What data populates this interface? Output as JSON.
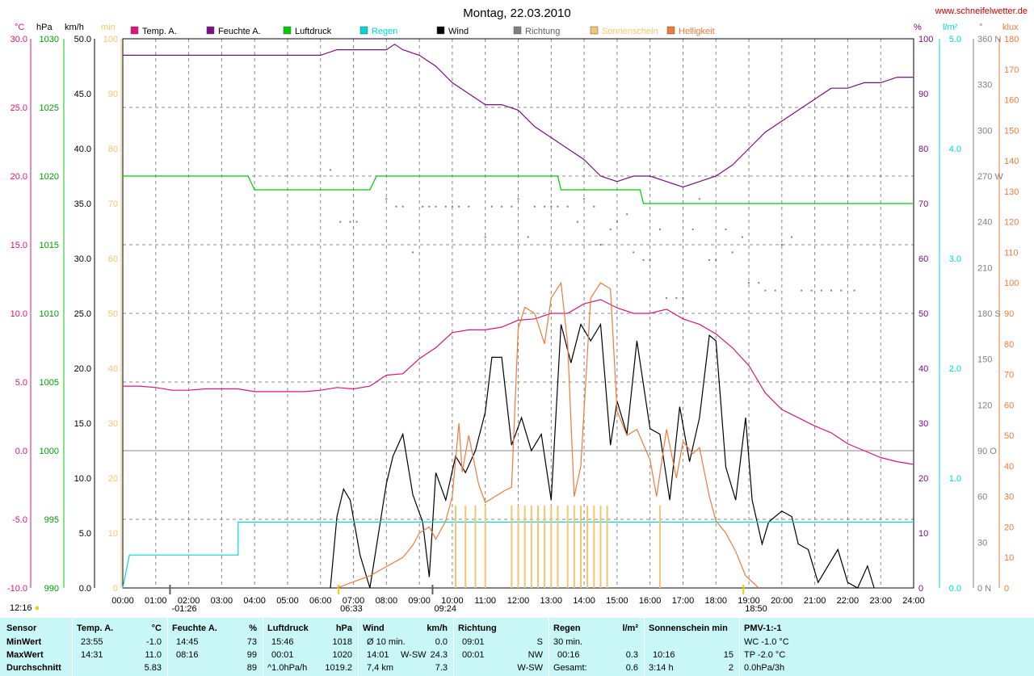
{
  "title": "Montag, 22.03.2010",
  "site": "www.schneifelwetter.de",
  "legend": [
    {
      "label": "Temp. A.",
      "color": "#e0137c"
    },
    {
      "label": "Feuchte A.",
      "color": "#7b0f82"
    },
    {
      "label": "Luftdruck",
      "color": "#00cc00"
    },
    {
      "label": "Regen",
      "color": "#00d8d8"
    },
    {
      "label": "Wind",
      "color": "#000000"
    },
    {
      "label": "Richtung",
      "color": "#808080"
    },
    {
      "label": "Sonnenschein",
      "color": "#f5c56e"
    },
    {
      "label": "Helligkeit",
      "color": "#f07a3c"
    }
  ],
  "axes": {
    "temp": {
      "unit": "°C",
      "ticks": [
        "30.0",
        "25.0",
        "20.0",
        "15.0",
        "10.0",
        "5.0",
        "0.0",
        "-5.0",
        "-10.0"
      ],
      "color": "#e0137c"
    },
    "pressure": {
      "unit": "hPa",
      "ticks": [
        "1030",
        "1025",
        "1020",
        "1015",
        "1010",
        "1005",
        "1000",
        "995",
        "990"
      ],
      "color": "#00a000"
    },
    "wind": {
      "unit": "km/h",
      "ticks": [
        "50.0",
        "45.0",
        "40.0",
        "35.0",
        "30.0",
        "25.0",
        "20.0",
        "15.0",
        "10.0",
        "5.0",
        "0.0"
      ],
      "color": "#000000"
    },
    "sun": {
      "unit": "min",
      "ticks": [
        "100",
        "90",
        "80",
        "70",
        "60",
        "50",
        "40",
        "30",
        "20",
        "10",
        "0"
      ],
      "color": "#f5c56e"
    },
    "humidity": {
      "unit": "%",
      "ticks": [
        "100",
        "90",
        "80",
        "70",
        "60",
        "50",
        "40",
        "30",
        "20",
        "10",
        "0"
      ],
      "color": "#7b0f82"
    },
    "rain": {
      "unit": "l/m²",
      "ticks": [
        "5.0",
        "4.0",
        "3.0",
        "2.0",
        "1.0",
        "0.0"
      ],
      "color": "#00d8d8"
    },
    "direction": {
      "unit": "°",
      "ticks": [
        "360 N",
        "330",
        "300",
        "270 W",
        "240",
        "210",
        "180 S",
        "150",
        "120",
        "90 O",
        "60",
        "30",
        "0 N"
      ],
      "color": "#808080"
    },
    "lux": {
      "unit": "klux",
      "ticks": [
        "180",
        "170",
        "160",
        "150",
        "140",
        "130",
        "120",
        "110",
        "100",
        "90",
        "80",
        "70",
        "60",
        "50",
        "40",
        "30",
        "20",
        "10",
        "0"
      ],
      "color": "#f07a3c"
    },
    "time": [
      "00:00",
      "01:00",
      "02:00",
      "03:00",
      "04:00",
      "05:00",
      "06:00",
      "07:00",
      "08:00",
      "09:00",
      "10:00",
      "11:00",
      "12:00",
      "13:00",
      "14:00",
      "15:00",
      "16:00",
      "17:00",
      "18:00",
      "19:00",
      "20:00",
      "21:00",
      "22:00",
      "23:00",
      "24:00"
    ]
  },
  "events": {
    "moonset": "12:16",
    "moon1": "01:26",
    "sunrise": "06:33",
    "moon2": "09:24",
    "sunset": "18:50"
  },
  "chart_data": {
    "type": "line",
    "title": "Montag, 22.03.2010",
    "x_unit": "hours",
    "xlim": [
      0,
      24
    ],
    "series": [
      {
        "name": "Temp. A.",
        "unit": "°C",
        "ylim": [
          -10,
          30
        ],
        "x": [
          0,
          0.5,
          1,
          1.5,
          2,
          2.5,
          3,
          3.5,
          4,
          4.5,
          5,
          5.5,
          6,
          6.5,
          7,
          7.5,
          8,
          8.5,
          9,
          9.5,
          10,
          10.5,
          11,
          11.5,
          12,
          12.5,
          13,
          13.5,
          14,
          14.5,
          15,
          15.5,
          16,
          16.5,
          17,
          17.5,
          18,
          18.5,
          19,
          19.5,
          20,
          20.5,
          21,
          21.5,
          22,
          22.5,
          23,
          23.5,
          24
        ],
        "y": [
          4.7,
          4.7,
          4.6,
          4.4,
          4.4,
          4.5,
          4.5,
          4.5,
          4.3,
          4.3,
          4.3,
          4.3,
          4.4,
          4.6,
          4.5,
          4.7,
          5.5,
          5.6,
          6.7,
          7.5,
          8.6,
          8.8,
          8.8,
          9.0,
          9.5,
          9.6,
          10.0,
          10.0,
          10.7,
          11.0,
          10.4,
          10.0,
          10.0,
          10.3,
          9.6,
          9.2,
          8.5,
          7.5,
          6.2,
          4.2,
          3.0,
          2.4,
          1.8,
          1.3,
          0.5,
          0.0,
          -0.5,
          -0.8,
          -1.0
        ]
      },
      {
        "name": "Feuchte A.",
        "unit": "%",
        "ylim": [
          0,
          100
        ],
        "x": [
          0,
          1,
          2,
          3,
          4,
          5,
          6,
          6.5,
          7,
          8,
          8.25,
          8.5,
          9,
          9.5,
          10,
          10.5,
          11,
          11.5,
          12,
          12.5,
          13,
          13.5,
          14,
          14.5,
          15,
          15.5,
          16,
          16.5,
          17,
          17.5,
          18,
          18.5,
          19,
          19.5,
          20,
          20.5,
          21,
          21.5,
          22,
          22.5,
          23,
          23.5,
          24
        ],
        "y": [
          97,
          97,
          97,
          97,
          97,
          97,
          97,
          98,
          98,
          98,
          99,
          98,
          97,
          95,
          92,
          90,
          88,
          88,
          87,
          84,
          82,
          80,
          78,
          75,
          74,
          75,
          75,
          74,
          73,
          74,
          75,
          77,
          80,
          83,
          85,
          87,
          89,
          91,
          91,
          92,
          92,
          93,
          93
        ]
      },
      {
        "name": "Luftdruck",
        "unit": "hPa",
        "ylim": [
          990,
          1030
        ],
        "x": [
          0,
          1,
          2,
          3,
          3.8,
          4,
          5,
          6,
          7,
          7.5,
          7.7,
          8,
          9,
          10,
          11,
          12,
          13,
          13.2,
          13.3,
          14,
          15,
          15.7,
          15.8,
          16,
          17,
          18,
          19,
          20,
          21,
          22,
          23,
          24
        ],
        "y": [
          1020,
          1020,
          1020,
          1020,
          1020,
          1019,
          1019,
          1019,
          1019,
          1019,
          1020,
          1020,
          1020,
          1020,
          1020,
          1020,
          1020,
          1020,
          1019,
          1019,
          1019,
          1019,
          1018,
          1018,
          1018,
          1018,
          1018,
          1018,
          1018,
          1018,
          1018,
          1018
        ]
      },
      {
        "name": "Wind",
        "unit": "km/h",
        "ylim": [
          0,
          50
        ],
        "x": [
          6.3,
          6.5,
          6.7,
          6.9,
          7.2,
          7.5,
          8.0,
          8.2,
          8.5,
          8.8,
          9.1,
          9.3,
          9.5,
          9.8,
          10.1,
          10.4,
          10.7,
          11.0,
          11.2,
          11.5,
          11.8,
          12.1,
          12.4,
          12.7,
          13.0,
          13.3,
          13.6,
          13.9,
          14.2,
          14.5,
          14.8,
          15.0,
          15.3,
          15.6,
          16.0,
          16.3,
          16.6,
          16.9,
          17.2,
          17.5,
          17.8,
          18.0,
          18.3,
          18.6,
          18.9,
          19.1,
          19.4,
          19.6,
          20.0,
          20.3,
          20.5,
          20.8,
          21.1,
          21.4,
          21.7,
          22.0,
          22.3,
          22.6,
          22.8
        ],
        "y": [
          0,
          6.5,
          9.0,
          8.0,
          3.0,
          0,
          9.5,
          12.0,
          14.0,
          8.5,
          6.0,
          1.0,
          10.5,
          8.0,
          12.0,
          10.5,
          12.5,
          16.0,
          21.0,
          21.0,
          13.0,
          15.5,
          12.5,
          14.0,
          8.0,
          24.0,
          20.5,
          24.0,
          22.5,
          24.0,
          13.0,
          17.0,
          14.0,
          22.5,
          14.5,
          14.0,
          8.0,
          16.5,
          11.5,
          15.5,
          23.0,
          22.5,
          11.0,
          8.0,
          15.5,
          8.0,
          4.0,
          6.0,
          7.0,
          6.5,
          4.0,
          3.5,
          0.5,
          2.0,
          3.5,
          0.5,
          0,
          2.0,
          0
        ]
      },
      {
        "name": "Regen",
        "unit": "l/m²",
        "ylim": [
          0,
          5
        ],
        "x": [
          0,
          0.2,
          0.25,
          3.3,
          3.5,
          3.5,
          24
        ],
        "y": [
          0,
          0.3,
          0.3,
          0.3,
          0.3,
          0.6,
          0.6
        ]
      },
      {
        "name": "Richtung",
        "unit": "°",
        "ylim": [
          0,
          360
        ],
        "points": "scatter",
        "x": [
          6.3,
          6.6,
          6.9,
          7.1,
          8.0,
          8.3,
          8.5,
          8.8,
          9.1,
          9.3,
          9.5,
          9.8,
          10.0,
          10.2,
          10.5,
          11.0,
          11.2,
          11.5,
          11.8,
          12.0,
          12.3,
          12.5,
          12.8,
          13.0,
          13.2,
          13.5,
          13.8,
          14.0,
          14.3,
          14.5,
          14.8,
          15.0,
          15.3,
          15.5,
          15.8,
          16.0,
          16.3,
          16.5,
          16.8,
          17.0,
          17.3,
          17.5,
          17.8,
          18.0,
          18.3,
          18.5,
          18.8,
          19.0,
          19.3,
          19.5,
          19.8,
          20.0,
          20.3,
          20.6,
          20.9,
          21.2,
          21.5,
          21.8,
          22.2
        ],
        "y": [
          274,
          240,
          240,
          240,
          255,
          250,
          250,
          220,
          250,
          250,
          250,
          250,
          250,
          250,
          250,
          230,
          250,
          250,
          250,
          255,
          230,
          250,
          250,
          250,
          250,
          250,
          240,
          255,
          250,
          225,
          235,
          240,
          245,
          220,
          215,
          215,
          235,
          190,
          190,
          190,
          235,
          255,
          215,
          215,
          235,
          220,
          230,
          200,
          200,
          195,
          195,
          225,
          230,
          195,
          195,
          195,
          195,
          195,
          195
        ]
      },
      {
        "name": "Sonnenschein",
        "unit": "min",
        "ylim": [
          0,
          100
        ],
        "points": "bars",
        "x": [
          10.1,
          10.4,
          10.7,
          11.0,
          11.8,
          12.0,
          12.2,
          12.4,
          12.6,
          12.8,
          13.0,
          13.2,
          13.5,
          13.7,
          13.9,
          14.1,
          14.3,
          14.5,
          14.7,
          16.3
        ],
        "y": [
          15,
          15,
          15,
          15,
          15,
          15,
          15,
          15,
          15,
          15,
          15,
          15,
          15,
          15,
          15,
          15,
          15,
          15,
          15,
          15
        ]
      },
      {
        "name": "Helligkeit",
        "unit": "klux",
        "ylim": [
          0,
          180
        ],
        "x": [
          6.5,
          7,
          7.5,
          8.0,
          8.5,
          8.8,
          9.0,
          9.3,
          9.5,
          9.8,
          10.0,
          10.2,
          10.3,
          10.5,
          10.8,
          11.0,
          11.3,
          11.6,
          11.8,
          12.0,
          12.2,
          12.5,
          12.8,
          13.0,
          13.3,
          13.5,
          13.7,
          13.9,
          14.2,
          14.5,
          14.8,
          15.0,
          15.3,
          15.6,
          16.0,
          16.2,
          16.5,
          16.8,
          17.0,
          17.3,
          17.5,
          17.8,
          18.0,
          18.3,
          18.6,
          18.9,
          19.1,
          19.3
        ],
        "y": [
          0,
          2,
          4,
          7,
          10,
          14,
          18,
          20,
          16,
          22,
          30,
          54,
          38,
          50,
          34,
          28,
          30,
          32,
          33,
          85,
          92,
          90,
          80,
          95,
          100,
          80,
          30,
          40,
          95,
          100,
          98,
          58,
          50,
          52,
          42,
          30,
          52,
          36,
          48,
          44,
          46,
          30,
          22,
          18,
          12,
          4,
          2,
          0
        ]
      }
    ]
  },
  "stats": {
    "sensor": {
      "header": "Sensor",
      "rows": [
        "MinWert",
        "MaxWert",
        "Durchschnitt"
      ]
    },
    "temp": {
      "header": "Temp. A.",
      "unit": "°C",
      "rows": [
        [
          "23:55",
          "-1.0"
        ],
        [
          "14:31",
          "11.0"
        ],
        [
          "",
          "5.83"
        ]
      ]
    },
    "humidity": {
      "header": "Feuchte A.",
      "unit": "%",
      "rows": [
        [
          "14:45",
          "73"
        ],
        [
          "08:16",
          "99"
        ],
        [
          "",
          "89"
        ]
      ]
    },
    "pressure": {
      "header": "Luftdruck",
      "unit": "hPa",
      "rows": [
        [
          "15:46",
          "1018"
        ],
        [
          "00:01",
          "1020"
        ],
        [
          "^1.0hPa/h",
          "1019.2"
        ]
      ]
    },
    "wind": {
      "header": "Wind",
      "unit": "km/h",
      "rows": [
        [
          "Ø 10 min.",
          "",
          "0.0"
        ],
        [
          "14:01",
          "W-SW",
          "24.3"
        ],
        [
          "7,4 km",
          "",
          "7.3"
        ]
      ]
    },
    "direction": {
      "header": "Richtung",
      "rows": [
        [
          "09:01",
          "S"
        ],
        [
          "00:01",
          "NW"
        ],
        [
          "",
          "W-SW"
        ]
      ]
    },
    "rain": {
      "header": "Regen",
      "unit": "l/m²",
      "rows": [
        [
          "30 min.",
          ""
        ],
        [
          "00:16",
          "0.3"
        ],
        [
          "Gesamt:",
          "0.6"
        ]
      ]
    },
    "sunshine": {
      "header": "Sonnenschein min",
      "rows": [
        [
          "",
          ""
        ],
        [
          "10:16",
          "15"
        ],
        [
          "3:14 h",
          "2"
        ]
      ]
    },
    "pmv": {
      "header": "PMV-1:-1",
      "rows": [
        "WC -1.0 °C",
        "TP -2.0 °C",
        "0.0hPa/3h"
      ]
    }
  }
}
